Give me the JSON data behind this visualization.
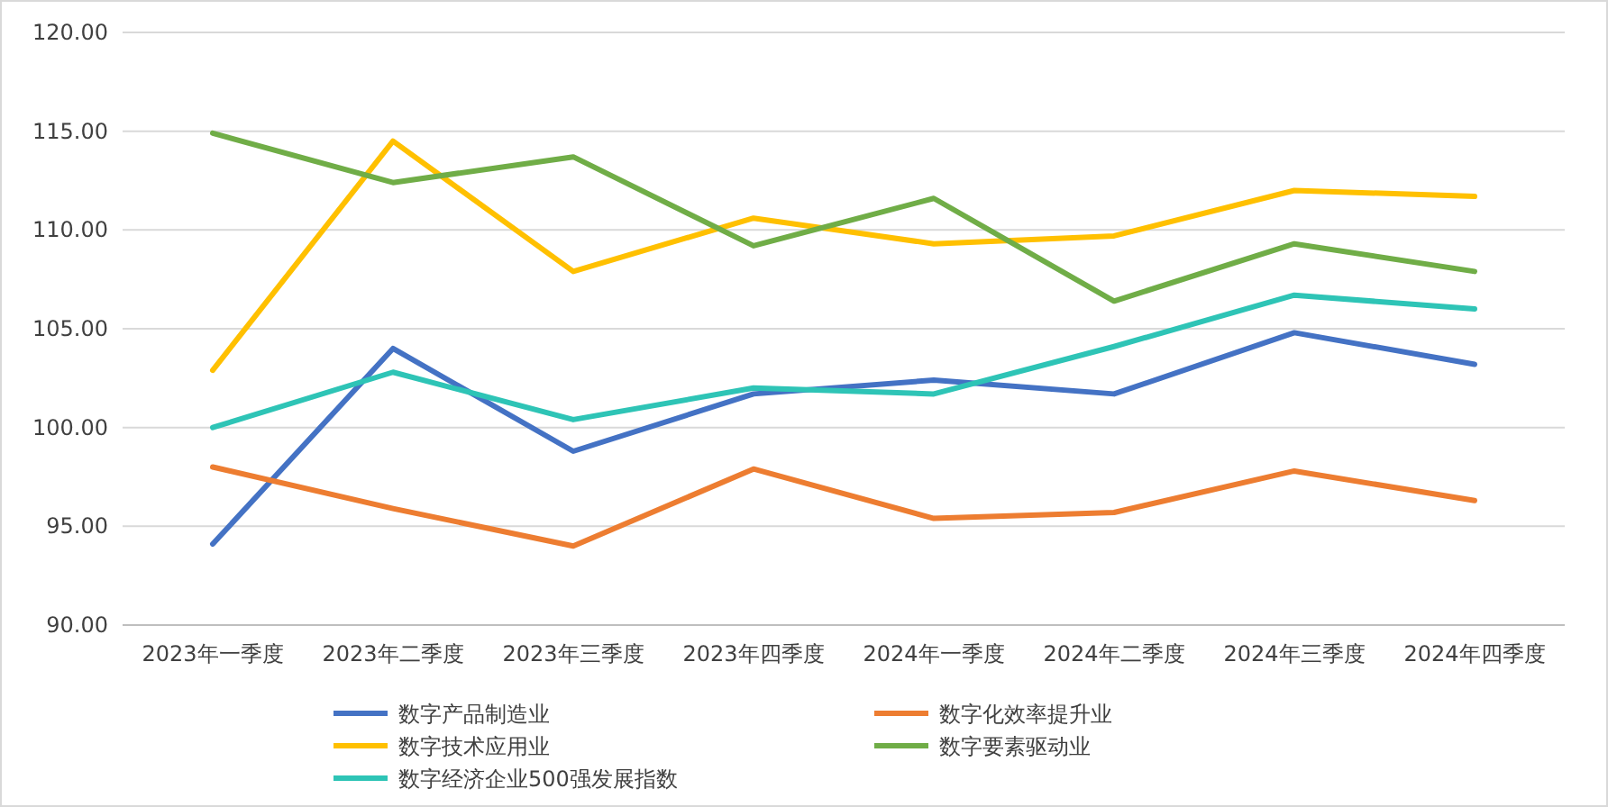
{
  "chart_data": {
    "type": "line",
    "categories": [
      "2023年一季度",
      "2023年二季度",
      "2023年三季度",
      "2023年四季度",
      "2024年一季度",
      "2024年二季度",
      "2024年三季度",
      "2024年四季度"
    ],
    "series": [
      {
        "name": "数字产品制造业",
        "color": "#4472c4",
        "values": [
          94.1,
          104.0,
          98.8,
          101.7,
          102.4,
          101.7,
          104.8,
          103.2
        ]
      },
      {
        "name": "数字化效率提升业",
        "color": "#ed7d31",
        "values": [
          98.0,
          95.9,
          94.0,
          97.9,
          95.4,
          95.7,
          97.8,
          96.3
        ]
      },
      {
        "name": "数字技术应用业",
        "color": "#ffc000",
        "values": [
          102.9,
          114.5,
          107.9,
          110.6,
          109.3,
          109.7,
          112.0,
          111.7
        ]
      },
      {
        "name": "数字要素驱动业",
        "color": "#70ad47",
        "values": [
          114.9,
          112.4,
          113.7,
          109.2,
          111.6,
          106.4,
          109.3,
          107.9
        ]
      },
      {
        "name": "数字经济企业500强发展指数",
        "color": "#2ec4b6",
        "values": [
          100.0,
          102.8,
          100.4,
          102.0,
          101.7,
          104.1,
          106.7,
          106.0
        ]
      }
    ],
    "ylim": [
      90,
      120
    ],
    "yticks": [
      {
        "value": 90,
        "label": "90.00"
      },
      {
        "value": 95,
        "label": "95.00"
      },
      {
        "value": 100,
        "label": "100.00"
      },
      {
        "value": 105,
        "label": "105.00"
      },
      {
        "value": 110,
        "label": "110.00"
      },
      {
        "value": 115,
        "label": "115.00"
      },
      {
        "value": 120,
        "label": "120.00"
      }
    ],
    "grid": "y",
    "legend": "bottom",
    "marker": "none",
    "line_style": "solid"
  }
}
